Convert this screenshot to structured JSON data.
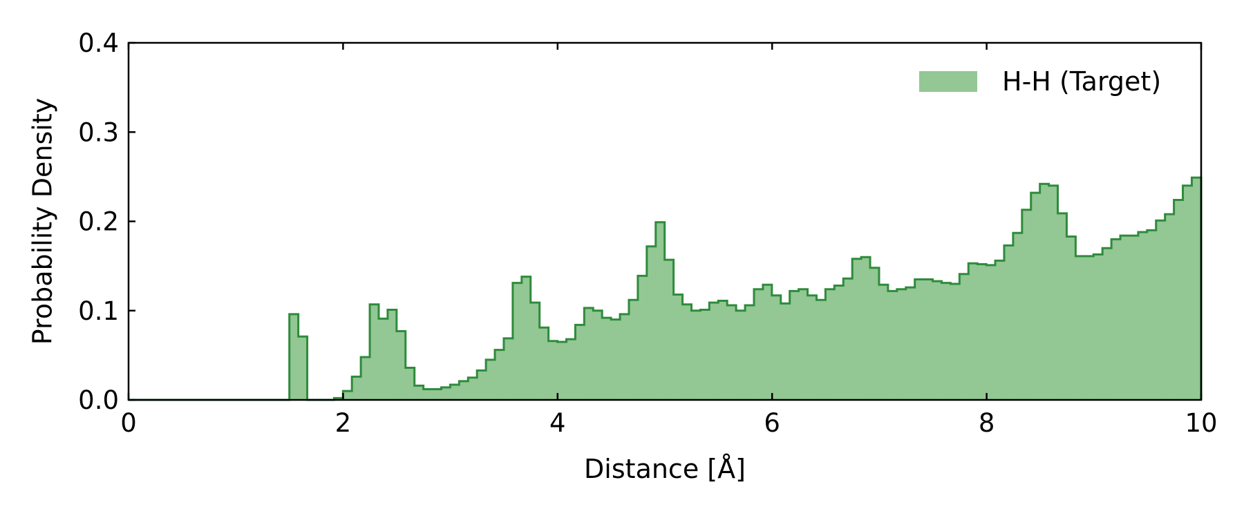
{
  "chart_data": {
    "type": "histogram",
    "title": "",
    "xlabel": "Distance [Å]",
    "ylabel": "Probability Density",
    "xlim": [
      0,
      10
    ],
    "ylim": [
      0,
      0.4
    ],
    "xticks": [
      0,
      2,
      4,
      6,
      8,
      10
    ],
    "xtick_labels": [
      "0",
      "2",
      "4",
      "6",
      "8",
      "10"
    ],
    "yticks": [
      0.0,
      0.1,
      0.2,
      0.3,
      0.4
    ],
    "ytick_labels": [
      "0.0",
      "0.1",
      "0.2",
      "0.3",
      "0.4"
    ],
    "grid": false,
    "legend_position": "top-right",
    "bin_width": 0.0833,
    "series": [
      {
        "name": "H-H (Target)",
        "fill_color": "#93c794",
        "edge_color": "#2e8b3b",
        "bin_start": 0,
        "values": [
          0,
          0,
          0,
          0,
          0,
          0,
          0,
          0,
          0,
          0,
          0,
          0,
          0,
          0,
          0,
          0,
          0,
          0,
          0.096,
          0.071,
          0,
          0,
          0,
          0.002,
          0.01,
          0.026,
          0.048,
          0.107,
          0.091,
          0.101,
          0.077,
          0.036,
          0.016,
          0.012,
          0.012,
          0.014,
          0.017,
          0.021,
          0.025,
          0.033,
          0.045,
          0.056,
          0.069,
          0.131,
          0.138,
          0.109,
          0.081,
          0.066,
          0.065,
          0.068,
          0.084,
          0.103,
          0.1,
          0.092,
          0.09,
          0.096,
          0.112,
          0.139,
          0.172,
          0.199,
          0.157,
          0.118,
          0.107,
          0.1,
          0.101,
          0.109,
          0.111,
          0.106,
          0.1,
          0.106,
          0.124,
          0.129,
          0.117,
          0.108,
          0.122,
          0.124,
          0.117,
          0.112,
          0.124,
          0.128,
          0.136,
          0.158,
          0.16,
          0.148,
          0.129,
          0.122,
          0.124,
          0.126,
          0.135,
          0.135,
          0.133,
          0.131,
          0.13,
          0.141,
          0.153,
          0.152,
          0.151,
          0.156,
          0.173,
          0.187,
          0.213,
          0.232,
          0.242,
          0.24,
          0.209,
          0.183,
          0.161,
          0.161,
          0.163,
          0.17,
          0.18,
          0.184,
          0.184,
          0.188,
          0.19,
          0.201,
          0.208,
          0.224,
          0.24,
          0.249,
          0.249
        ]
      }
    ]
  }
}
